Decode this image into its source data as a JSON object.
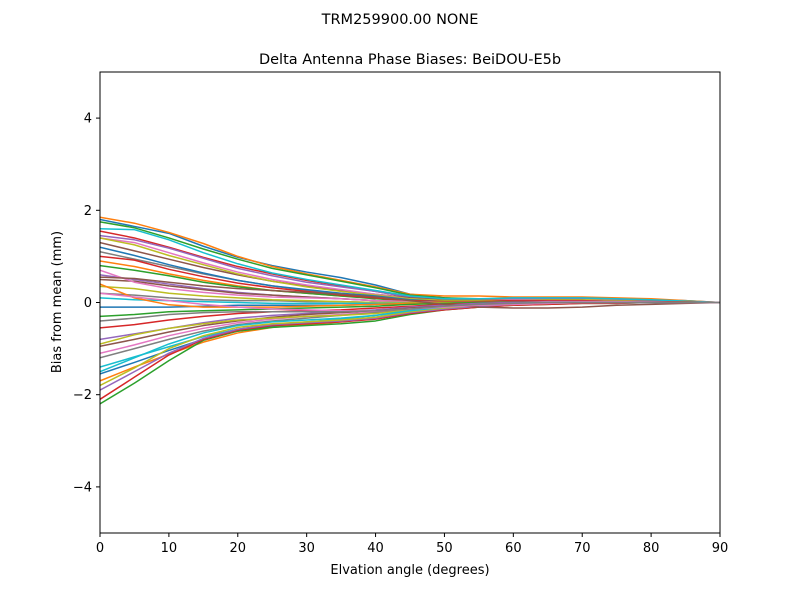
{
  "suptitle": "TRM259900.00    NONE",
  "chart_data": {
    "type": "line",
    "title": "Delta Antenna Phase Biases: BeiDOU-E5b",
    "xlabel": "Elvation angle (degrees)",
    "ylabel": "Bias from mean (mm)",
    "xlim": [
      0,
      90
    ],
    "ylim": [
      -5,
      5
    ],
    "xticks": [
      0,
      10,
      20,
      30,
      40,
      50,
      60,
      70,
      80,
      90
    ],
    "yticks": [
      -4,
      -2,
      0,
      2,
      4
    ],
    "x": [
      0,
      5,
      10,
      15,
      20,
      25,
      30,
      35,
      40,
      45,
      50,
      55,
      60,
      65,
      70,
      75,
      80,
      85,
      90
    ],
    "grid": false,
    "series": [
      {
        "color": "#1f77b4",
        "values": [
          1.8,
          1.65,
          1.5,
          1.22,
          0.98,
          0.8,
          0.66,
          0.54,
          0.38,
          0.18,
          0.1,
          0.06,
          0.06,
          0.1,
          0.1,
          0.08,
          0.06,
          0.04,
          0.0
        ]
      },
      {
        "color": "#ff7f0e",
        "values": [
          1.85,
          1.72,
          1.52,
          1.28,
          1.0,
          0.78,
          0.62,
          0.48,
          0.34,
          0.18,
          0.14,
          0.14,
          0.12,
          0.12,
          0.12,
          0.1,
          0.08,
          0.04,
          0.0
        ]
      },
      {
        "color": "#2ca02c",
        "values": [
          1.75,
          1.62,
          1.4,
          1.16,
          0.94,
          0.74,
          0.6,
          0.46,
          0.32,
          0.16,
          0.1,
          0.08,
          0.08,
          0.08,
          0.08,
          0.06,
          0.04,
          0.02,
          0.0
        ]
      },
      {
        "color": "#d62728",
        "values": [
          1.55,
          1.4,
          1.2,
          0.98,
          0.78,
          0.62,
          0.48,
          0.36,
          0.24,
          0.12,
          0.08,
          0.08,
          0.08,
          0.08,
          0.08,
          0.06,
          0.04,
          0.02,
          0.0
        ]
      },
      {
        "color": "#9467bd",
        "values": [
          1.45,
          1.36,
          1.18,
          0.96,
          0.74,
          0.58,
          0.44,
          0.34,
          0.24,
          0.12,
          0.06,
          0.06,
          0.08,
          0.08,
          0.08,
          0.06,
          0.04,
          0.02,
          0.0
        ]
      },
      {
        "color": "#8c564b",
        "values": [
          1.3,
          1.12,
          0.94,
          0.76,
          0.6,
          0.46,
          0.36,
          0.26,
          0.18,
          0.1,
          0.06,
          0.06,
          0.06,
          0.06,
          0.06,
          0.04,
          0.02,
          0.01,
          0.0
        ]
      },
      {
        "color": "#e377c2",
        "values": [
          1.4,
          1.3,
          1.08,
          0.86,
          0.66,
          0.5,
          0.38,
          0.28,
          0.18,
          0.08,
          0.04,
          0.04,
          0.06,
          0.06,
          0.06,
          0.04,
          0.02,
          0.01,
          0.0
        ]
      },
      {
        "color": "#7f7f7f",
        "values": [
          1.1,
          0.94,
          0.78,
          0.62,
          0.48,
          0.36,
          0.26,
          0.18,
          0.12,
          0.06,
          0.04,
          0.04,
          0.04,
          0.04,
          0.04,
          0.02,
          0.02,
          0.01,
          0.0
        ]
      },
      {
        "color": "#bcbd22",
        "values": [
          1.4,
          1.25,
          1.02,
          0.82,
          0.62,
          0.46,
          0.34,
          0.24,
          0.16,
          0.08,
          0.04,
          0.04,
          0.04,
          0.06,
          0.06,
          0.04,
          0.02,
          0.01,
          0.0
        ]
      },
      {
        "color": "#17becf",
        "values": [
          1.6,
          1.58,
          1.36,
          1.08,
          0.84,
          0.64,
          0.5,
          0.38,
          0.26,
          0.14,
          0.08,
          0.08,
          0.1,
          0.1,
          0.1,
          0.08,
          0.06,
          0.03,
          0.0
        ]
      },
      {
        "color": "#1f77b4",
        "values": [
          1.2,
          1.02,
          0.82,
          0.64,
          0.48,
          0.36,
          0.28,
          0.2,
          0.14,
          0.06,
          0.02,
          0.02,
          0.04,
          0.04,
          0.04,
          0.02,
          0.02,
          0.01,
          0.0
        ]
      },
      {
        "color": "#ff7f0e",
        "values": [
          0.9,
          0.78,
          0.62,
          0.48,
          0.36,
          0.26,
          0.2,
          0.14,
          0.1,
          0.04,
          0.02,
          0.02,
          0.02,
          0.04,
          0.04,
          0.02,
          0.02,
          0.01,
          0.0
        ]
      },
      {
        "color": "#2ca02c",
        "values": [
          0.8,
          0.7,
          0.58,
          0.44,
          0.34,
          0.26,
          0.2,
          0.14,
          0.08,
          0.04,
          0.02,
          0.02,
          0.02,
          0.02,
          0.02,
          0.02,
          0.01,
          0.01,
          0.0
        ]
      },
      {
        "color": "#d62728",
        "values": [
          1.0,
          0.92,
          0.72,
          0.56,
          0.42,
          0.32,
          0.24,
          0.16,
          0.1,
          0.04,
          0.02,
          0.02,
          0.04,
          0.04,
          0.04,
          0.02,
          0.02,
          0.01,
          0.0
        ]
      },
      {
        "color": "#9467bd",
        "values": [
          0.6,
          0.5,
          0.4,
          0.3,
          0.22,
          0.16,
          0.12,
          0.08,
          0.04,
          0.02,
          0.0,
          0.0,
          0.02,
          0.02,
          0.02,
          0.02,
          0.01,
          0.0,
          0.0
        ]
      },
      {
        "color": "#8c564b",
        "values": [
          0.5,
          0.46,
          0.36,
          0.28,
          0.2,
          0.16,
          0.12,
          0.08,
          0.04,
          0.02,
          0.0,
          0.0,
          0.02,
          0.02,
          0.02,
          0.02,
          0.01,
          0.0,
          0.0
        ]
      },
      {
        "color": "#e377c2",
        "values": [
          0.7,
          0.44,
          0.3,
          0.22,
          0.16,
          0.12,
          0.1,
          0.08,
          0.04,
          0.02,
          0.0,
          0.0,
          0.0,
          0.02,
          0.02,
          0.02,
          0.01,
          0.0,
          0.0
        ]
      },
      {
        "color": "#7f7f7f",
        "values": [
          0.2,
          0.16,
          0.1,
          0.06,
          0.04,
          0.04,
          0.02,
          0.02,
          0.0,
          0.0,
          0.0,
          0.0,
          0.0,
          0.0,
          0.0,
          0.0,
          0.0,
          0.0,
          0.0
        ]
      },
      {
        "color": "#bcbd22",
        "values": [
          0.35,
          0.3,
          0.2,
          0.14,
          0.1,
          0.06,
          0.04,
          0.02,
          0.0,
          0.0,
          0.0,
          0.0,
          0.0,
          0.0,
          0.0,
          0.0,
          0.0,
          0.0,
          0.0
        ]
      },
      {
        "color": "#17becf",
        "values": [
          0.1,
          0.06,
          0.04,
          0.02,
          0.0,
          -0.02,
          -0.02,
          -0.02,
          -0.02,
          -0.02,
          -0.02,
          0.0,
          0.0,
          0.0,
          0.0,
          0.0,
          0.0,
          0.0,
          0.0
        ]
      },
      {
        "color": "#1f77b4",
        "values": [
          -0.1,
          -0.1,
          -0.1,
          -0.08,
          -0.06,
          -0.06,
          -0.06,
          -0.06,
          -0.04,
          -0.02,
          -0.02,
          0.0,
          0.0,
          0.0,
          0.0,
          0.0,
          0.0,
          0.0,
          0.0
        ]
      },
      {
        "color": "#ff7f0e",
        "values": [
          0.4,
          0.1,
          -0.05,
          -0.1,
          -0.1,
          -0.1,
          -0.08,
          -0.06,
          -0.04,
          -0.02,
          -0.02,
          0.0,
          0.0,
          0.0,
          0.0,
          0.0,
          0.0,
          0.0,
          0.0
        ]
      },
      {
        "color": "#2ca02c",
        "values": [
          -0.3,
          -0.26,
          -0.2,
          -0.18,
          -0.16,
          -0.14,
          -0.12,
          -0.1,
          -0.08,
          -0.04,
          -0.02,
          0.0,
          0.0,
          0.0,
          0.0,
          0.0,
          0.0,
          0.0,
          0.0
        ]
      },
      {
        "color": "#d62728",
        "values": [
          -0.55,
          -0.48,
          -0.38,
          -0.3,
          -0.24,
          -0.2,
          -0.18,
          -0.16,
          -0.12,
          -0.08,
          -0.04,
          -0.02,
          0.0,
          0.0,
          0.0,
          0.0,
          0.0,
          0.0,
          0.0
        ]
      },
      {
        "color": "#9467bd",
        "values": [
          -0.8,
          -0.68,
          -0.56,
          -0.44,
          -0.34,
          -0.28,
          -0.24,
          -0.2,
          -0.16,
          -0.1,
          -0.06,
          -0.02,
          0.0,
          0.0,
          0.0,
          0.0,
          0.0,
          0.0,
          0.0
        ]
      },
      {
        "color": "#8c564b",
        "values": [
          -0.95,
          -0.8,
          -0.64,
          -0.5,
          -0.4,
          -0.32,
          -0.26,
          -0.22,
          -0.18,
          -0.12,
          -0.08,
          -0.04,
          -0.02,
          0.0,
          0.0,
          0.0,
          0.0,
          0.0,
          0.0
        ]
      },
      {
        "color": "#e377c2",
        "values": [
          -1.1,
          -0.92,
          -0.72,
          -0.56,
          -0.44,
          -0.36,
          -0.3,
          -0.26,
          -0.2,
          -0.14,
          -0.1,
          -0.06,
          -0.02,
          0.0,
          0.0,
          0.0,
          0.0,
          0.0,
          0.0
        ]
      },
      {
        "color": "#7f7f7f",
        "values": [
          -1.2,
          -1.0,
          -0.8,
          -0.62,
          -0.48,
          -0.4,
          -0.34,
          -0.28,
          -0.22,
          -0.16,
          -0.12,
          -0.08,
          -0.04,
          -0.02,
          0.0,
          0.0,
          0.0,
          0.0,
          0.0
        ]
      },
      {
        "color": "#bcbd22",
        "values": [
          -0.9,
          -0.7,
          -0.56,
          -0.46,
          -0.38,
          -0.34,
          -0.3,
          -0.28,
          -0.24,
          -0.16,
          -0.1,
          -0.06,
          -0.04,
          -0.02,
          0.0,
          0.0,
          0.0,
          0.0,
          0.0
        ]
      },
      {
        "color": "#17becf",
        "values": [
          -1.4,
          -1.18,
          -0.96,
          -0.74,
          -0.58,
          -0.48,
          -0.42,
          -0.36,
          -0.28,
          -0.18,
          -0.12,
          -0.08,
          -0.04,
          -0.02,
          0.0,
          0.0,
          0.0,
          0.0,
          0.0
        ]
      },
      {
        "color": "#1f77b4",
        "values": [
          -1.55,
          -1.3,
          -1.04,
          -0.8,
          -0.62,
          -0.52,
          -0.46,
          -0.4,
          -0.32,
          -0.22,
          -0.14,
          -0.08,
          -0.04,
          -0.02,
          0.0,
          0.0,
          0.0,
          0.0,
          0.0
        ]
      },
      {
        "color": "#ff7f0e",
        "values": [
          -1.7,
          -1.4,
          -1.12,
          -0.86,
          -0.66,
          -0.54,
          -0.48,
          -0.42,
          -0.34,
          -0.22,
          -0.14,
          -0.08,
          -0.04,
          -0.02,
          0.0,
          0.0,
          0.0,
          0.0,
          0.0
        ]
      },
      {
        "color": "#2ca02c",
        "values": [
          -2.2,
          -1.75,
          -1.26,
          -0.82,
          -0.62,
          -0.54,
          -0.5,
          -0.46,
          -0.4,
          -0.26,
          -0.16,
          -0.1,
          -0.06,
          -0.04,
          -0.02,
          -0.02,
          0.0,
          0.0,
          0.0
        ]
      },
      {
        "color": "#d62728",
        "values": [
          -2.1,
          -1.62,
          -1.14,
          -0.8,
          -0.6,
          -0.5,
          -0.46,
          -0.42,
          -0.36,
          -0.24,
          -0.16,
          -0.1,
          -0.06,
          -0.04,
          -0.02,
          -0.02,
          0.0,
          0.0,
          0.0
        ]
      },
      {
        "color": "#9467bd",
        "values": [
          -1.9,
          -1.5,
          -1.1,
          -0.78,
          -0.58,
          -0.48,
          -0.44,
          -0.4,
          -0.34,
          -0.22,
          -0.14,
          -0.08,
          -0.04,
          -0.02,
          0.0,
          0.0,
          0.0,
          0.0,
          0.0
        ]
      },
      {
        "color": "#bcbd22",
        "values": [
          -1.8,
          -1.42,
          -1.0,
          -0.72,
          -0.54,
          -0.46,
          -0.42,
          -0.38,
          -0.32,
          -0.2,
          -0.12,
          -0.06,
          -0.04,
          -0.02,
          0.0,
          0.0,
          0.0,
          0.0,
          0.0
        ]
      },
      {
        "color": "#17becf",
        "values": [
          -1.5,
          -1.2,
          -0.9,
          -0.66,
          -0.5,
          -0.42,
          -0.38,
          -0.34,
          -0.28,
          -0.18,
          -0.1,
          -0.06,
          -0.02,
          0.0,
          0.0,
          0.0,
          0.0,
          0.0,
          0.0
        ]
      },
      {
        "color": "#8c564b",
        "values": [
          0.55,
          0.52,
          0.44,
          0.36,
          0.3,
          0.26,
          0.22,
          0.18,
          0.12,
          0.04,
          -0.04,
          -0.1,
          -0.12,
          -0.12,
          -0.1,
          -0.06,
          -0.04,
          -0.02,
          0.0
        ]
      },
      {
        "color": "#e377c2",
        "values": [
          0.2,
          0.12,
          0.04,
          -0.04,
          -0.1,
          -0.14,
          -0.16,
          -0.18,
          -0.18,
          -0.14,
          -0.1,
          -0.06,
          -0.04,
          -0.02,
          0.0,
          0.0,
          0.0,
          0.0,
          0.0
        ]
      },
      {
        "color": "#7f7f7f",
        "values": [
          -0.4,
          -0.34,
          -0.26,
          -0.22,
          -0.2,
          -0.2,
          -0.2,
          -0.2,
          -0.18,
          -0.14,
          -0.08,
          -0.04,
          -0.02,
          0.0,
          0.0,
          0.0,
          0.0,
          0.0,
          0.0
        ]
      }
    ]
  }
}
